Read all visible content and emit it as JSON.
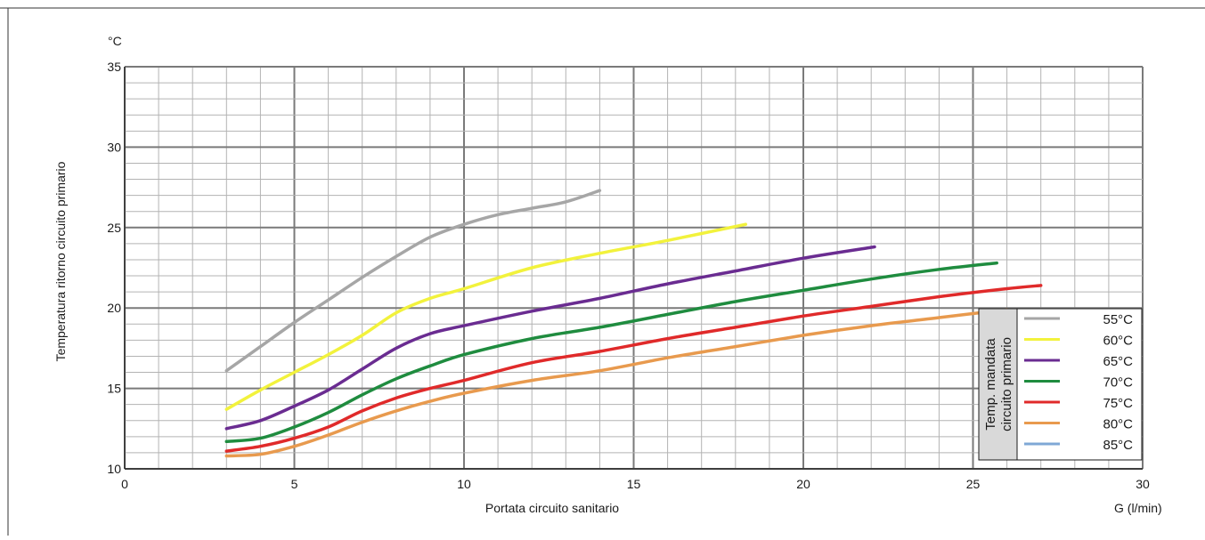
{
  "chart_data": {
    "type": "line",
    "y_unit": "°C",
    "xlabel": "Portata circuito sanitario",
    "x_unit": "G (l/min)",
    "ylabel": "Temperatura ritorno circuito primario",
    "xlim": [
      0,
      30
    ],
    "ylim": [
      10,
      35
    ],
    "x_ticks": [
      0,
      5,
      10,
      15,
      20,
      25,
      30
    ],
    "y_ticks": [
      10,
      15,
      20,
      25,
      30,
      35
    ],
    "grid": true,
    "legend": {
      "title_line1": "Temp. mandata",
      "title_line2": "circuito primario",
      "placement": "bottom-right"
    },
    "series": [
      {
        "name": "55°C",
        "color": "#a6a6a6",
        "points": [
          [
            3,
            16.1
          ],
          [
            4,
            17.6
          ],
          [
            5,
            19.1
          ],
          [
            6,
            20.5
          ],
          [
            7,
            21.9
          ],
          [
            8,
            23.2
          ],
          [
            9,
            24.4
          ],
          [
            10,
            25.2
          ],
          [
            11,
            25.8
          ],
          [
            12,
            26.2
          ],
          [
            13,
            26.6
          ],
          [
            14,
            27.3
          ]
        ]
      },
      {
        "name": "60°C",
        "color": "#f2f23c",
        "points": [
          [
            3,
            13.7
          ],
          [
            4,
            14.9
          ],
          [
            5,
            16.0
          ],
          [
            6,
            17.1
          ],
          [
            7,
            18.3
          ],
          [
            8,
            19.7
          ],
          [
            9,
            20.6
          ],
          [
            10,
            21.2
          ],
          [
            12,
            22.5
          ],
          [
            14,
            23.4
          ],
          [
            16,
            24.2
          ],
          [
            18.3,
            25.2
          ]
        ]
      },
      {
        "name": "65°C",
        "color": "#6a2c91",
        "points": [
          [
            3,
            12.5
          ],
          [
            4,
            13.0
          ],
          [
            5,
            13.9
          ],
          [
            6,
            14.9
          ],
          [
            7,
            16.2
          ],
          [
            8,
            17.5
          ],
          [
            9,
            18.4
          ],
          [
            10,
            18.9
          ],
          [
            12,
            19.8
          ],
          [
            14,
            20.6
          ],
          [
            16,
            21.5
          ],
          [
            18,
            22.3
          ],
          [
            20,
            23.1
          ],
          [
            22.1,
            23.8
          ]
        ]
      },
      {
        "name": "70°C",
        "color": "#1f8c3f",
        "points": [
          [
            3,
            11.7
          ],
          [
            4,
            11.9
          ],
          [
            5,
            12.6
          ],
          [
            6,
            13.5
          ],
          [
            7,
            14.6
          ],
          [
            8,
            15.6
          ],
          [
            9,
            16.4
          ],
          [
            10,
            17.1
          ],
          [
            12,
            18.1
          ],
          [
            14,
            18.8
          ],
          [
            16,
            19.6
          ],
          [
            18,
            20.4
          ],
          [
            20,
            21.1
          ],
          [
            22,
            21.8
          ],
          [
            24,
            22.4
          ],
          [
            25.7,
            22.8
          ]
        ]
      },
      {
        "name": "75°C",
        "color": "#e02a2a",
        "points": [
          [
            3,
            11.1
          ],
          [
            4,
            11.4
          ],
          [
            5,
            11.9
          ],
          [
            6,
            12.6
          ],
          [
            7,
            13.6
          ],
          [
            8,
            14.4
          ],
          [
            9,
            15.0
          ],
          [
            10,
            15.5
          ],
          [
            12,
            16.6
          ],
          [
            14,
            17.3
          ],
          [
            16,
            18.1
          ],
          [
            18,
            18.8
          ],
          [
            20,
            19.5
          ],
          [
            22,
            20.1
          ],
          [
            24,
            20.7
          ],
          [
            26,
            21.2
          ],
          [
            27,
            21.4
          ]
        ]
      },
      {
        "name": "80°C",
        "color": "#e89a4e",
        "points": [
          [
            3,
            10.8
          ],
          [
            4,
            10.9
          ],
          [
            5,
            11.4
          ],
          [
            6,
            12.1
          ],
          [
            7,
            12.9
          ],
          [
            8,
            13.6
          ],
          [
            9,
            14.2
          ],
          [
            10,
            14.7
          ],
          [
            12,
            15.5
          ],
          [
            14,
            16.1
          ],
          [
            16,
            16.9
          ],
          [
            18,
            17.6
          ],
          [
            20,
            18.3
          ],
          [
            22,
            18.9
          ],
          [
            24,
            19.4
          ],
          [
            26,
            19.9
          ]
        ]
      },
      {
        "name": "85°C",
        "color": "#7fa8d6",
        "points": []
      }
    ]
  }
}
